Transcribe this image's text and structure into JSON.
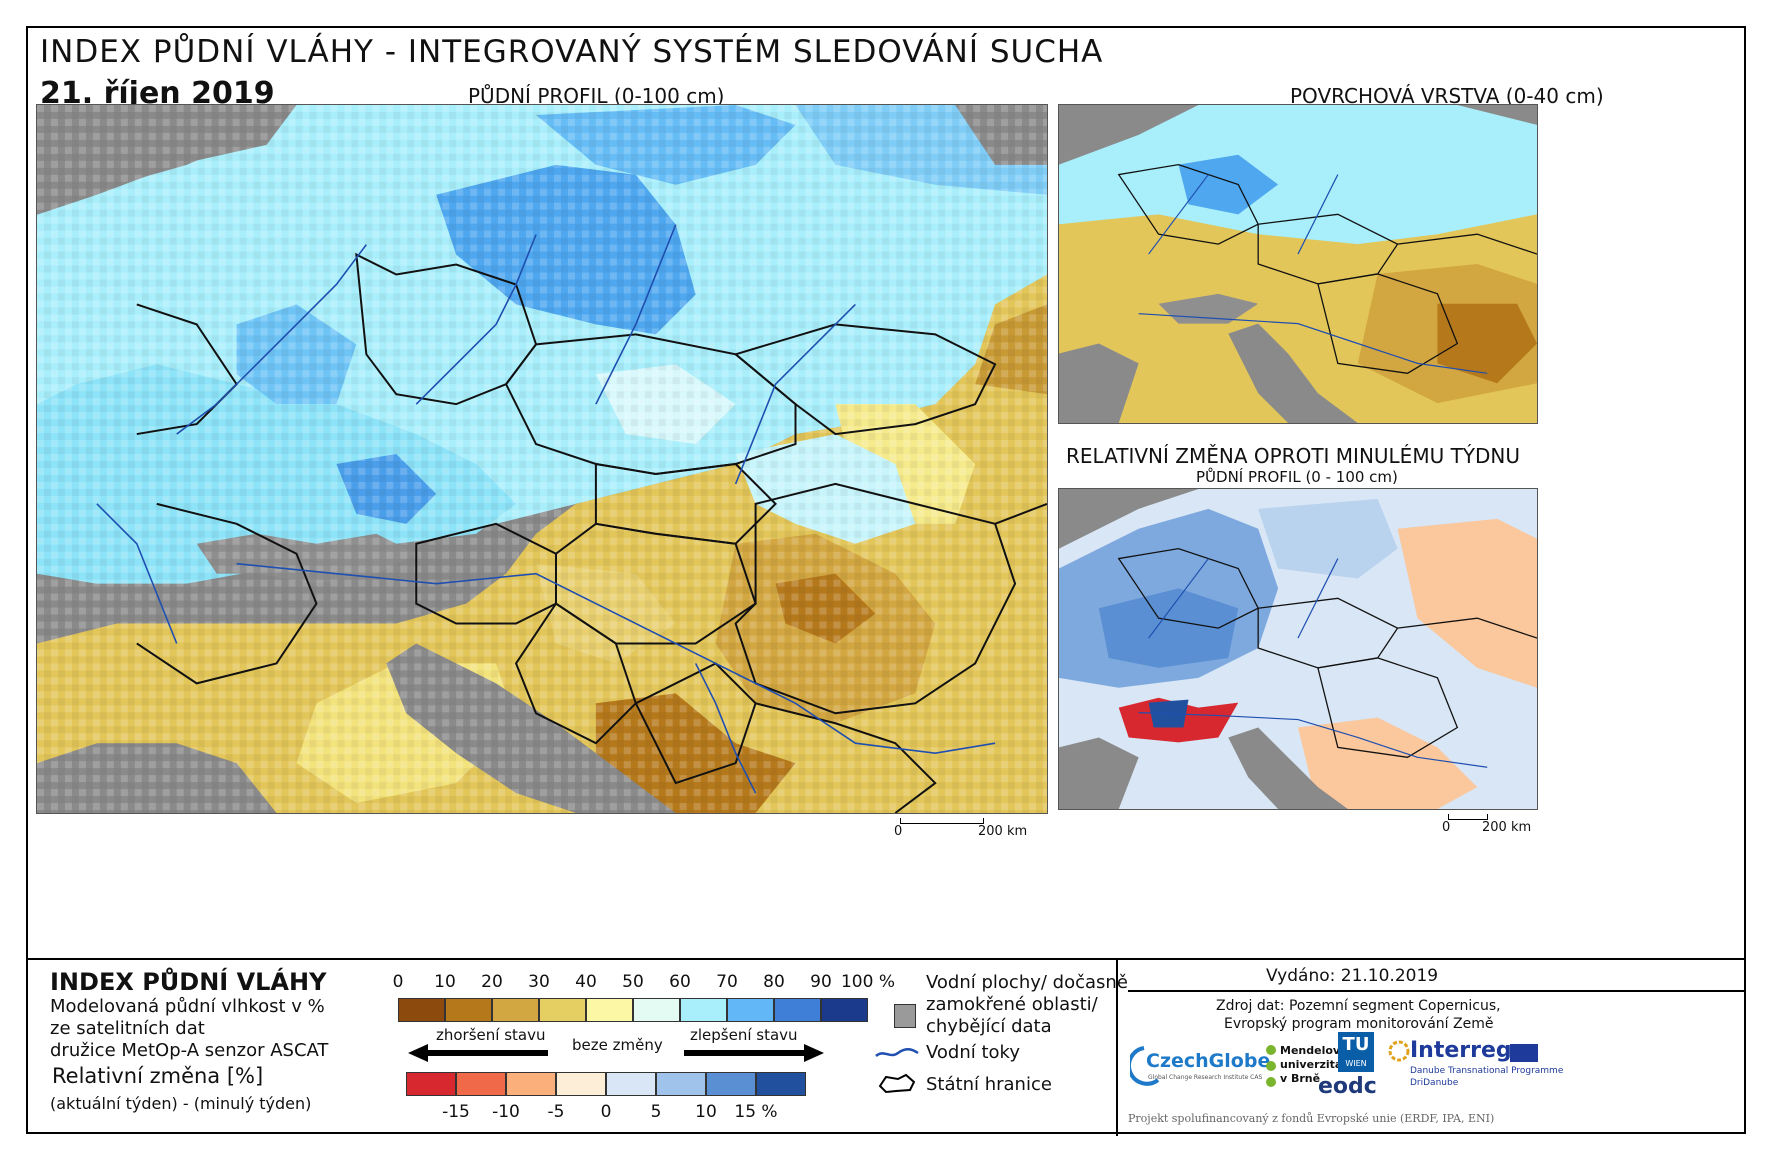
{
  "header": {
    "title": "INDEX PŮDNÍ VLÁHY - INTEGROVANÝ SYSTÉM SLEDOVÁNÍ SUCHA",
    "date": "21. říjen 2019"
  },
  "maps": {
    "main_title": "PŮDNÍ PROFIL (0-100 cm)",
    "surface_title": "POVRCHOVÁ VRSTVA (0-40 cm)",
    "change_title": "RELATIVNÍ ZMĚNA OPROTI MINULÉMU TÝDNU",
    "change_subtitle": "PŮDNÍ PROFIL (0 - 100 cm)",
    "scale_main": {
      "zero": "0",
      "end": "200 km"
    },
    "scale_small": {
      "zero": "0",
      "end": "200 km"
    }
  },
  "legend": {
    "index_title": "INDEX PŮDNÍ VLÁHY",
    "index_desc_1": "Modelovaná půdní vlhkost v %",
    "index_desc_2": "ze satelitních dat",
    "index_desc_3": "družice MetOp-A senzor ASCAT",
    "change_title": "Relativní změna [%]",
    "change_desc": "(aktuální týden) - (minulý týden)",
    "index_ticks": [
      "0",
      "10",
      "20",
      "30",
      "40",
      "50",
      "60",
      "70",
      "80",
      "90",
      "100 %"
    ],
    "index_colors": [
      "#8c4a0c",
      "#b5791c",
      "#d2a640",
      "#e6cf62",
      "#fbf7a4",
      "#e4fbf4",
      "#a8eefb",
      "#62b8f6",
      "#3f7fd8",
      "#1c3a8c"
    ],
    "worse_label": "zhoršení stavu",
    "nochange_label": "beze změny",
    "better_label": "zlepšení stavu",
    "change_ticks": [
      "-15",
      "-10",
      "-5",
      "0",
      "5",
      "10",
      "15 %"
    ],
    "change_colors": [
      "#d7282f",
      "#f06a4a",
      "#fbb07c",
      "#fdeed8",
      "#d8e6f5",
      "#9fc3ea",
      "#5a8fd3",
      "#21509e"
    ],
    "water_label_1": "Vodní plochy/ dočasně",
    "water_label_2": "zamokřené oblasti/",
    "water_label_3": "chybějící data",
    "rivers_label": "Vodní toky",
    "borders_label": "Státní hranice"
  },
  "info": {
    "issued": "Vydáno: 21.10.2019",
    "source_1": "Zdroj dat: Pozemní segment Copernicus,",
    "source_2": "Evropský program monitorování Země",
    "funding": "Projekt spolufinancovaný z fondů Evropské unie (ERDF, IPA, ENI)"
  },
  "logos": {
    "czechglobe": "CzechGlobe",
    "czechglobe_sub": "Global Change Research Institute CAS",
    "mendel_1": "Mendelova",
    "mendel_2": "univerzita",
    "mendel_3": "v Brně",
    "tu": "TU",
    "tu_sub": "WIEN",
    "eodc": "eodc",
    "interreg": "Interreg",
    "interreg_sub_1": "Danube Transnational Programme",
    "interreg_sub_2": "DriDanube"
  }
}
